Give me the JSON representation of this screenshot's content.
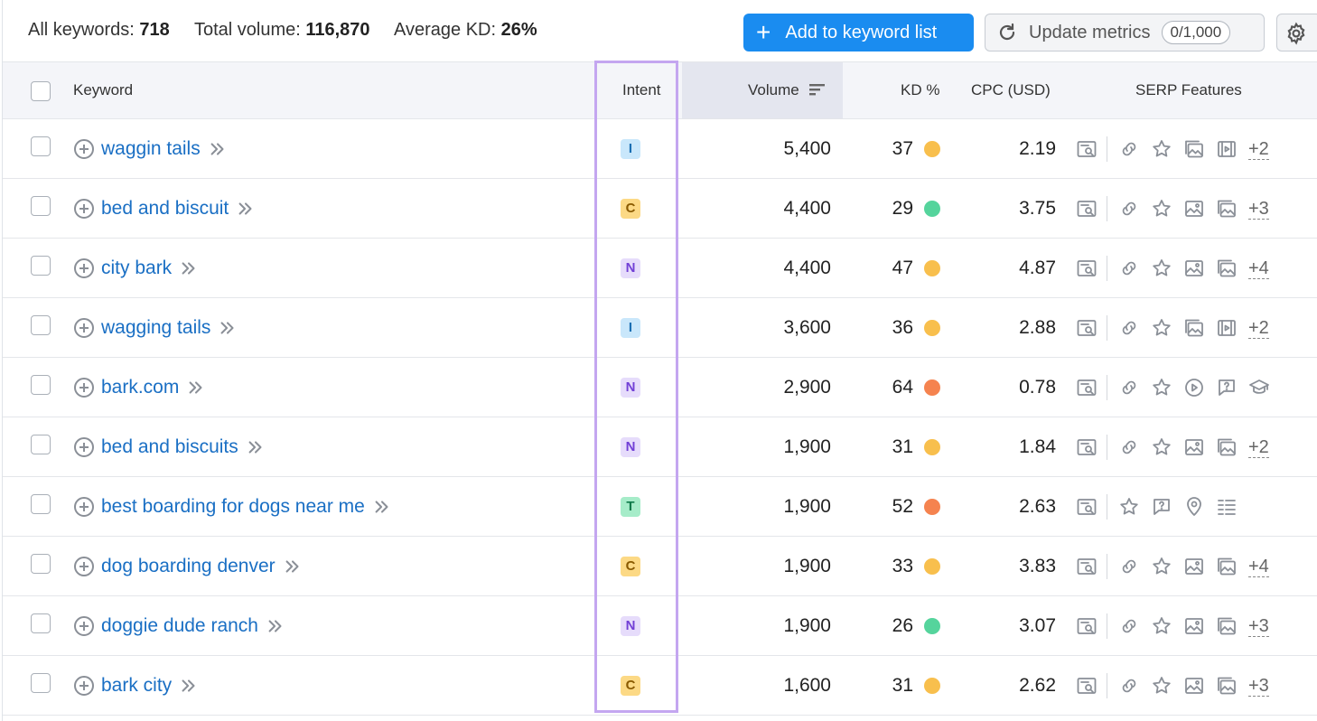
{
  "summary": {
    "all_keywords_label": "All keywords:",
    "all_keywords_value": "718",
    "total_volume_label": "Total volume:",
    "total_volume_value": "116,870",
    "avg_kd_label": "Average KD:",
    "avg_kd_value": "26%"
  },
  "toolbar": {
    "add_label": "Add to keyword list",
    "update_label": "Update metrics",
    "update_badge": "0/1,000"
  },
  "columns": {
    "keyword": "Keyword",
    "intent": "Intent",
    "volume": "Volume",
    "kd": "KD %",
    "cpc": "CPC (USD)",
    "serp": "SERP Features"
  },
  "colors": {
    "kd_yellow": "#f8bf4d",
    "kd_green": "#55d49c",
    "kd_orange": "#f5834f",
    "link": "#1a6fc4",
    "accent": "#1a8cf0"
  },
  "rows": [
    {
      "keyword": "waggin tails",
      "intent": "I",
      "volume": "5,400",
      "kd": "37",
      "kd_color": "yellow",
      "cpc": "2.19",
      "serp": [
        "snippet-icon",
        "link-icon",
        "star-icon",
        "image-stack-icon",
        "video-icon"
      ],
      "more": "+2"
    },
    {
      "keyword": "bed and biscuit",
      "intent": "C",
      "volume": "4,400",
      "kd": "29",
      "kd_color": "green",
      "cpc": "3.75",
      "serp": [
        "snippet-icon",
        "link-icon",
        "star-icon",
        "image-icon",
        "image-stack-icon"
      ],
      "more": "+3"
    },
    {
      "keyword": "city bark",
      "intent": "N",
      "volume": "4,400",
      "kd": "47",
      "kd_color": "yellow",
      "cpc": "4.87",
      "serp": [
        "snippet-icon",
        "link-icon",
        "star-icon",
        "image-icon",
        "image-stack-icon"
      ],
      "more": "+4"
    },
    {
      "keyword": "wagging tails",
      "intent": "I",
      "volume": "3,600",
      "kd": "36",
      "kd_color": "yellow",
      "cpc": "2.88",
      "serp": [
        "snippet-icon",
        "link-icon",
        "star-icon",
        "image-stack-icon",
        "video-icon"
      ],
      "more": "+2"
    },
    {
      "keyword": "bark.com",
      "intent": "N",
      "volume": "2,900",
      "kd": "64",
      "kd_color": "orange",
      "cpc": "0.78",
      "serp": [
        "snippet-icon",
        "link-icon",
        "star-icon",
        "play-icon",
        "question-icon",
        "graduation-cap-icon"
      ],
      "more": ""
    },
    {
      "keyword": "bed and biscuits",
      "intent": "N",
      "volume": "1,900",
      "kd": "31",
      "kd_color": "yellow",
      "cpc": "1.84",
      "serp": [
        "snippet-icon",
        "link-icon",
        "star-icon",
        "image-icon",
        "image-stack-icon"
      ],
      "more": "+2"
    },
    {
      "keyword": "best boarding for dogs near me",
      "intent": "T",
      "volume": "1,900",
      "kd": "52",
      "kd_color": "orange",
      "cpc": "2.63",
      "serp": [
        "snippet-icon",
        "star-icon",
        "question-icon",
        "location-pin-icon",
        "list-icon"
      ],
      "more": ""
    },
    {
      "keyword": "dog boarding denver",
      "intent": "C",
      "volume": "1,900",
      "kd": "33",
      "kd_color": "yellow",
      "cpc": "3.83",
      "serp": [
        "snippet-icon",
        "link-icon",
        "star-icon",
        "image-icon",
        "image-stack-icon"
      ],
      "more": "+4"
    },
    {
      "keyword": "doggie dude ranch",
      "intent": "N",
      "volume": "1,900",
      "kd": "26",
      "kd_color": "green",
      "cpc": "3.07",
      "serp": [
        "snippet-icon",
        "link-icon",
        "star-icon",
        "image-icon",
        "image-stack-icon"
      ],
      "more": "+3"
    },
    {
      "keyword": "bark city",
      "intent": "C",
      "volume": "1,600",
      "kd": "31",
      "kd_color": "yellow",
      "cpc": "2.62",
      "serp": [
        "snippet-icon",
        "link-icon",
        "star-icon",
        "image-icon",
        "image-stack-icon"
      ],
      "more": "+3"
    }
  ]
}
